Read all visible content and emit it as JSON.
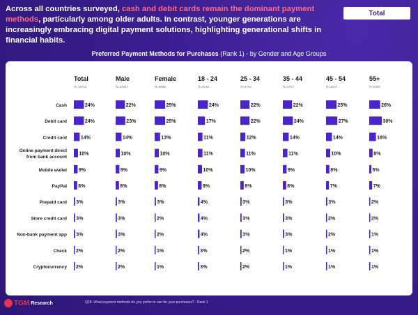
{
  "headline": {
    "part1": "Across all countries surveyed, ",
    "highlight": "cash and debit cards remain the dominant payment methods",
    "part2": ", particularly among older adults. In contrast, younger generations are increasingly embracing digital payment solutions, highlighting generational shifts in financial habits."
  },
  "tab": {
    "label": "Total"
  },
  "chart_title": {
    "bold": "Preferred Payment Methods for Purchases",
    "rank": " (Rank 1)",
    "rest": " - by Gender and Age Groups"
  },
  "footer": {
    "logo_brand": "TGM",
    "logo_sub": "Research",
    "note": "Q28: What payment methods do you prefer to use for your purchases? - Rank 1"
  },
  "colors": {
    "bar": "#4a25c9",
    "text": "#1a1a1a",
    "muted": "#777777",
    "accent": "#ff6b86"
  },
  "chart_data": {
    "type": "table",
    "title": "Preferred Payment Methods for Purchases (Rank 1) - by Gender and Age Groups",
    "columns": [
      {
        "name": "Total",
        "n": "N=19712"
      },
      {
        "name": "Male",
        "n": "N=10017"
      },
      {
        "name": "Female",
        "n": "N=9695"
      },
      {
        "name": "18 - 24",
        "n": "N=3015"
      },
      {
        "name": "25 - 34",
        "n": "N=4734"
      },
      {
        "name": "35 - 44",
        "n": "N=4767"
      },
      {
        "name": "45 - 54",
        "n": "N=4207"
      },
      {
        "name": "55+",
        "n": "N=2995"
      }
    ],
    "rows": [
      {
        "label": "Cash",
        "values": [
          24,
          22,
          25,
          24,
          22,
          22,
          25,
          26
        ]
      },
      {
        "label": "Debit card",
        "values": [
          24,
          23,
          25,
          17,
          22,
          24,
          27,
          30
        ]
      },
      {
        "label": "Credit card",
        "values": [
          14,
          14,
          13,
          11,
          12,
          14,
          14,
          16
        ]
      },
      {
        "label": "Online payment direct from bank account",
        "values": [
          10,
          10,
          10,
          11,
          11,
          11,
          10,
          8
        ]
      },
      {
        "label": "Mobile wallet",
        "values": [
          9,
          9,
          9,
          10,
          10,
          9,
          8,
          5
        ]
      },
      {
        "label": "PayPal",
        "values": [
          8,
          8,
          8,
          9,
          8,
          8,
          7,
          7
        ]
      },
      {
        "label": "Prepaid card",
        "values": [
          3,
          3,
          3,
          4,
          3,
          3,
          3,
          2
        ]
      },
      {
        "label": "Store credit card",
        "values": [
          3,
          3,
          2,
          4,
          3,
          3,
          2,
          2
        ]
      },
      {
        "label": "Non-bank payment app",
        "values": [
          3,
          3,
          2,
          4,
          3,
          3,
          2,
          1
        ]
      },
      {
        "label": "Check",
        "values": [
          2,
          2,
          1,
          3,
          2,
          1,
          1,
          1
        ]
      },
      {
        "label": "Cryptocurrency",
        "values": [
          2,
          2,
          1,
          3,
          2,
          1,
          1,
          1
        ]
      }
    ],
    "value_suffix": "%",
    "vmax": 30
  }
}
